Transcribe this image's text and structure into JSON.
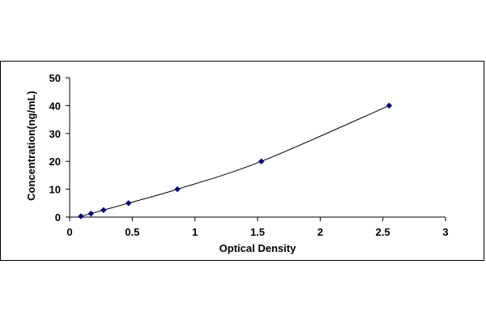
{
  "chart_data": {
    "type": "scatter",
    "title": "",
    "xlabel": "Optical Density",
    "ylabel": "Concentration(ng/mL)",
    "xlim": [
      0,
      3
    ],
    "ylim": [
      0,
      50
    ],
    "x_ticks": [
      "0",
      "0.5",
      "1",
      "1.5",
      "2",
      "2.5",
      "3"
    ],
    "y_ticks": [
      "0",
      "10",
      "20",
      "30",
      "40",
      "50"
    ],
    "grid": false,
    "legend": "none",
    "series": [
      {
        "points": [
          {
            "x": 0.09,
            "y": 0.3
          },
          {
            "x": 0.17,
            "y": 1.25
          },
          {
            "x": 0.27,
            "y": 2.5
          },
          {
            "x": 0.47,
            "y": 5
          },
          {
            "x": 0.86,
            "y": 10
          },
          {
            "x": 1.53,
            "y": 20
          },
          {
            "x": 2.55,
            "y": 40
          }
        ],
        "marker": "diamond",
        "line": "smooth",
        "color": "#000080",
        "line_color": "#000000"
      }
    ]
  }
}
